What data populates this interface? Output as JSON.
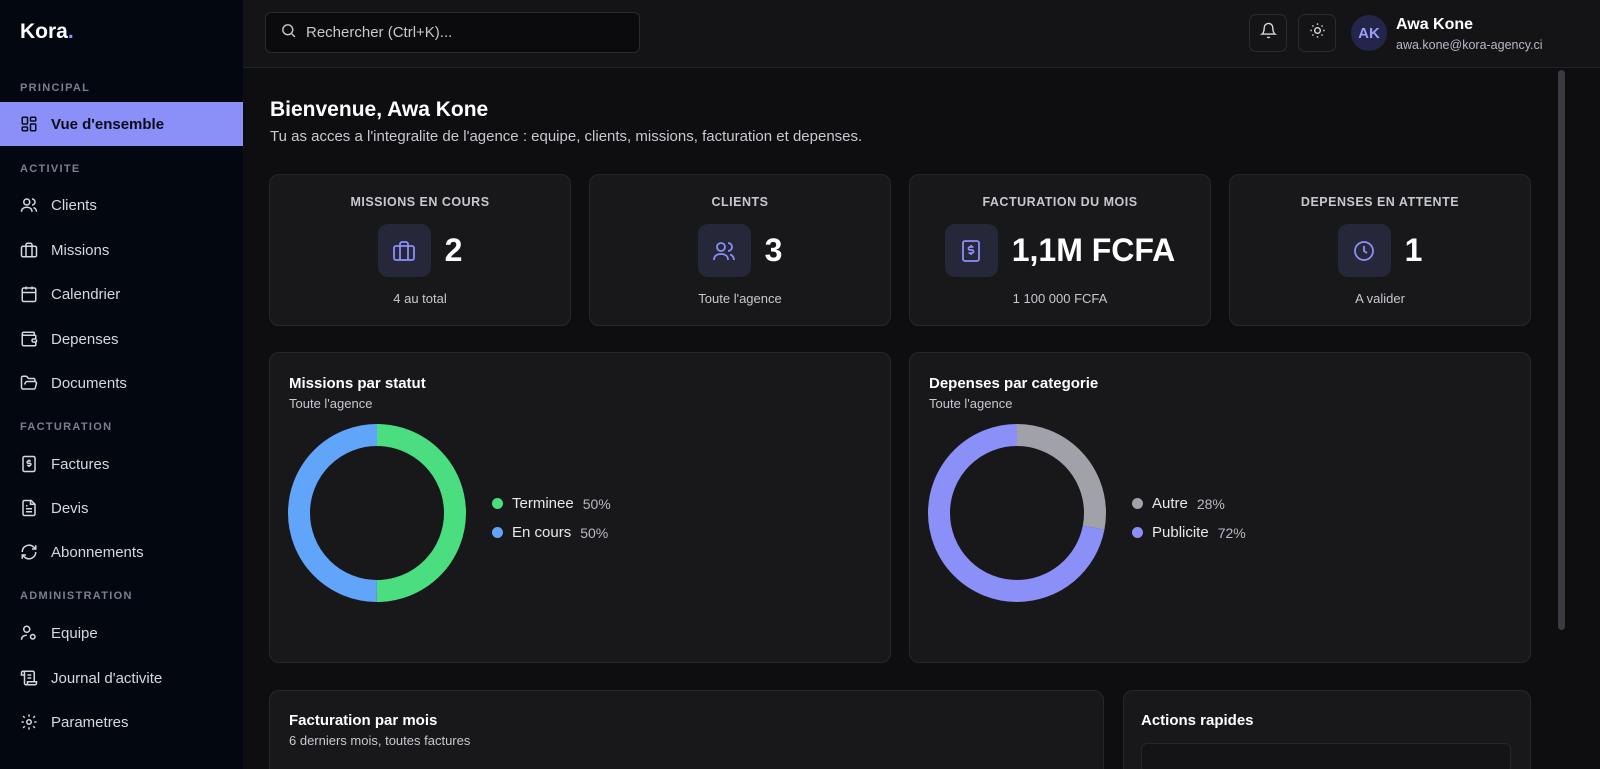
{
  "brand": {
    "name": "Kora",
    "dot": "."
  },
  "sidebar": {
    "sections": {
      "principal": "PRINCIPAL",
      "activite": "ACTIVITE",
      "facturation": "FACTURATION",
      "administration": "ADMINISTRATION"
    },
    "items": {
      "overview": "Vue d'ensemble",
      "clients": "Clients",
      "missions": "Missions",
      "calendrier": "Calendrier",
      "depenses": "Depenses",
      "documents": "Documents",
      "factures": "Factures",
      "devis": "Devis",
      "abonnements": "Abonnements",
      "equipe": "Equipe",
      "journal": "Journal d'activite",
      "parametres": "Parametres"
    },
    "active": "overview"
  },
  "topbar": {
    "search_placeholder": "Rechercher (Ctrl+K)...",
    "user": {
      "initials": "AK",
      "name": "Awa Kone",
      "email": "awa.kone@kora-agency.ci"
    }
  },
  "main": {
    "welcome": "Bienvenue, Awa Kone",
    "subtitle": "Tu as acces a l'integralite de l'agence : equipe, clients, missions, facturation et depenses.",
    "stats": {
      "missions": {
        "label": "MISSIONS EN COURS",
        "value": "2",
        "sub": "4 au total"
      },
      "clients": {
        "label": "CLIENTS",
        "value": "3",
        "sub": "Toute l'agence"
      },
      "billing": {
        "label": "FACTURATION DU MOIS",
        "value": "1,1M FCFA",
        "sub": "1 100 000 FCFA"
      },
      "expenses": {
        "label": "DEPENSES EN ATTENTE",
        "value": "1",
        "sub": "A valider"
      }
    },
    "bottom": {
      "billing_title": "Facturation par mois",
      "billing_sub": "6 derniers mois, toutes factures",
      "actions_title": "Actions rapides"
    }
  },
  "colors": {
    "accent": "#8b8ff8",
    "terminee": "#4ade80",
    "en_cours": "#60a5fa",
    "autre": "#a1a1aa",
    "publicite": "#8b8ff8"
  },
  "chart_data": [
    {
      "type": "pie",
      "title": "Missions par statut",
      "subtitle": "Toute l'agence",
      "series": [
        {
          "name": "Terminee",
          "value": 50,
          "label": "50%",
          "color": "#4ade80"
        },
        {
          "name": "En cours",
          "value": 50,
          "label": "50%",
          "color": "#60a5fa"
        }
      ]
    },
    {
      "type": "pie",
      "title": "Depenses par categorie",
      "subtitle": "Toute l'agence",
      "series": [
        {
          "name": "Autre",
          "value": 28,
          "label": "28%",
          "color": "#a1a1aa"
        },
        {
          "name": "Publicite",
          "value": 72,
          "label": "72%",
          "color": "#8b8ff8"
        }
      ]
    }
  ]
}
